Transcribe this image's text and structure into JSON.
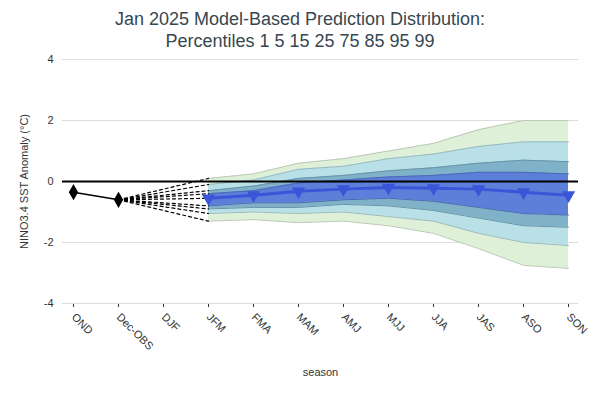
{
  "chart_data": {
    "type": "plume",
    "title": "Jan 2025 Model-Based Prediction Distribution:",
    "subtitle": "Percentiles 1 5 15 25 75 85 95 99",
    "x_label": "season",
    "y_label": "NINO3.4 SST Anomaly (°C)",
    "categories": [
      "OND",
      "Dec-OBS",
      "DJF",
      "JFM",
      "FMA",
      "MAM",
      "AMJ",
      "MJJ",
      "JJA",
      "JAS",
      "ASO",
      "SON"
    ],
    "ylim": [
      -4,
      4
    ],
    "yticks": [
      -4,
      -2,
      0,
      2,
      4
    ],
    "grid": true,
    "observed": {
      "color": "#000000",
      "marker": "diamond",
      "values": [
        -0.35,
        -0.6,
        null,
        null,
        null,
        null,
        null,
        null,
        null,
        null,
        null,
        null
      ]
    },
    "bands": [
      {
        "color": "#dff0d8",
        "lower": [
          null,
          null,
          null,
          -1.3,
          -1.25,
          -1.35,
          -1.3,
          -1.45,
          -1.7,
          -2.2,
          -2.75,
          -2.85
        ],
        "upper": [
          null,
          null,
          null,
          0.1,
          0.25,
          0.6,
          0.75,
          1.0,
          1.25,
          1.7,
          2.0,
          2.0
        ]
      },
      {
        "color": "#b8e0e6",
        "lower": [
          null,
          null,
          null,
          -1.05,
          -1.0,
          -1.05,
          -1.0,
          -1.15,
          -1.3,
          -1.7,
          -2.0,
          -2.1
        ],
        "upper": [
          null,
          null,
          null,
          -0.1,
          0.05,
          0.4,
          0.5,
          0.75,
          0.9,
          1.15,
          1.3,
          1.3
        ]
      },
      {
        "color": "#7fb1c9",
        "lower": [
          null,
          null,
          null,
          -0.9,
          -0.85,
          -0.85,
          -0.75,
          -0.8,
          -0.95,
          -1.2,
          -1.45,
          -1.5
        ],
        "upper": [
          null,
          null,
          null,
          -0.3,
          -0.15,
          0.1,
          0.2,
          0.35,
          0.45,
          0.6,
          0.7,
          0.65
        ]
      },
      {
        "color": "#5c7fd9",
        "lower": [
          null,
          null,
          null,
          -0.8,
          -0.7,
          -0.7,
          -0.6,
          -0.55,
          -0.65,
          -0.85,
          -1.05,
          -1.1
        ],
        "upper": [
          null,
          null,
          null,
          -0.4,
          -0.3,
          -0.05,
          0.05,
          0.15,
          0.2,
          0.3,
          0.3,
          0.25
        ]
      }
    ],
    "median": {
      "color": "#3c55d8",
      "marker": "triangle-down",
      "values": [
        null,
        null,
        null,
        -0.55,
        -0.45,
        -0.32,
        -0.25,
        -0.2,
        -0.22,
        -0.25,
        -0.35,
        -0.45
      ]
    }
  }
}
